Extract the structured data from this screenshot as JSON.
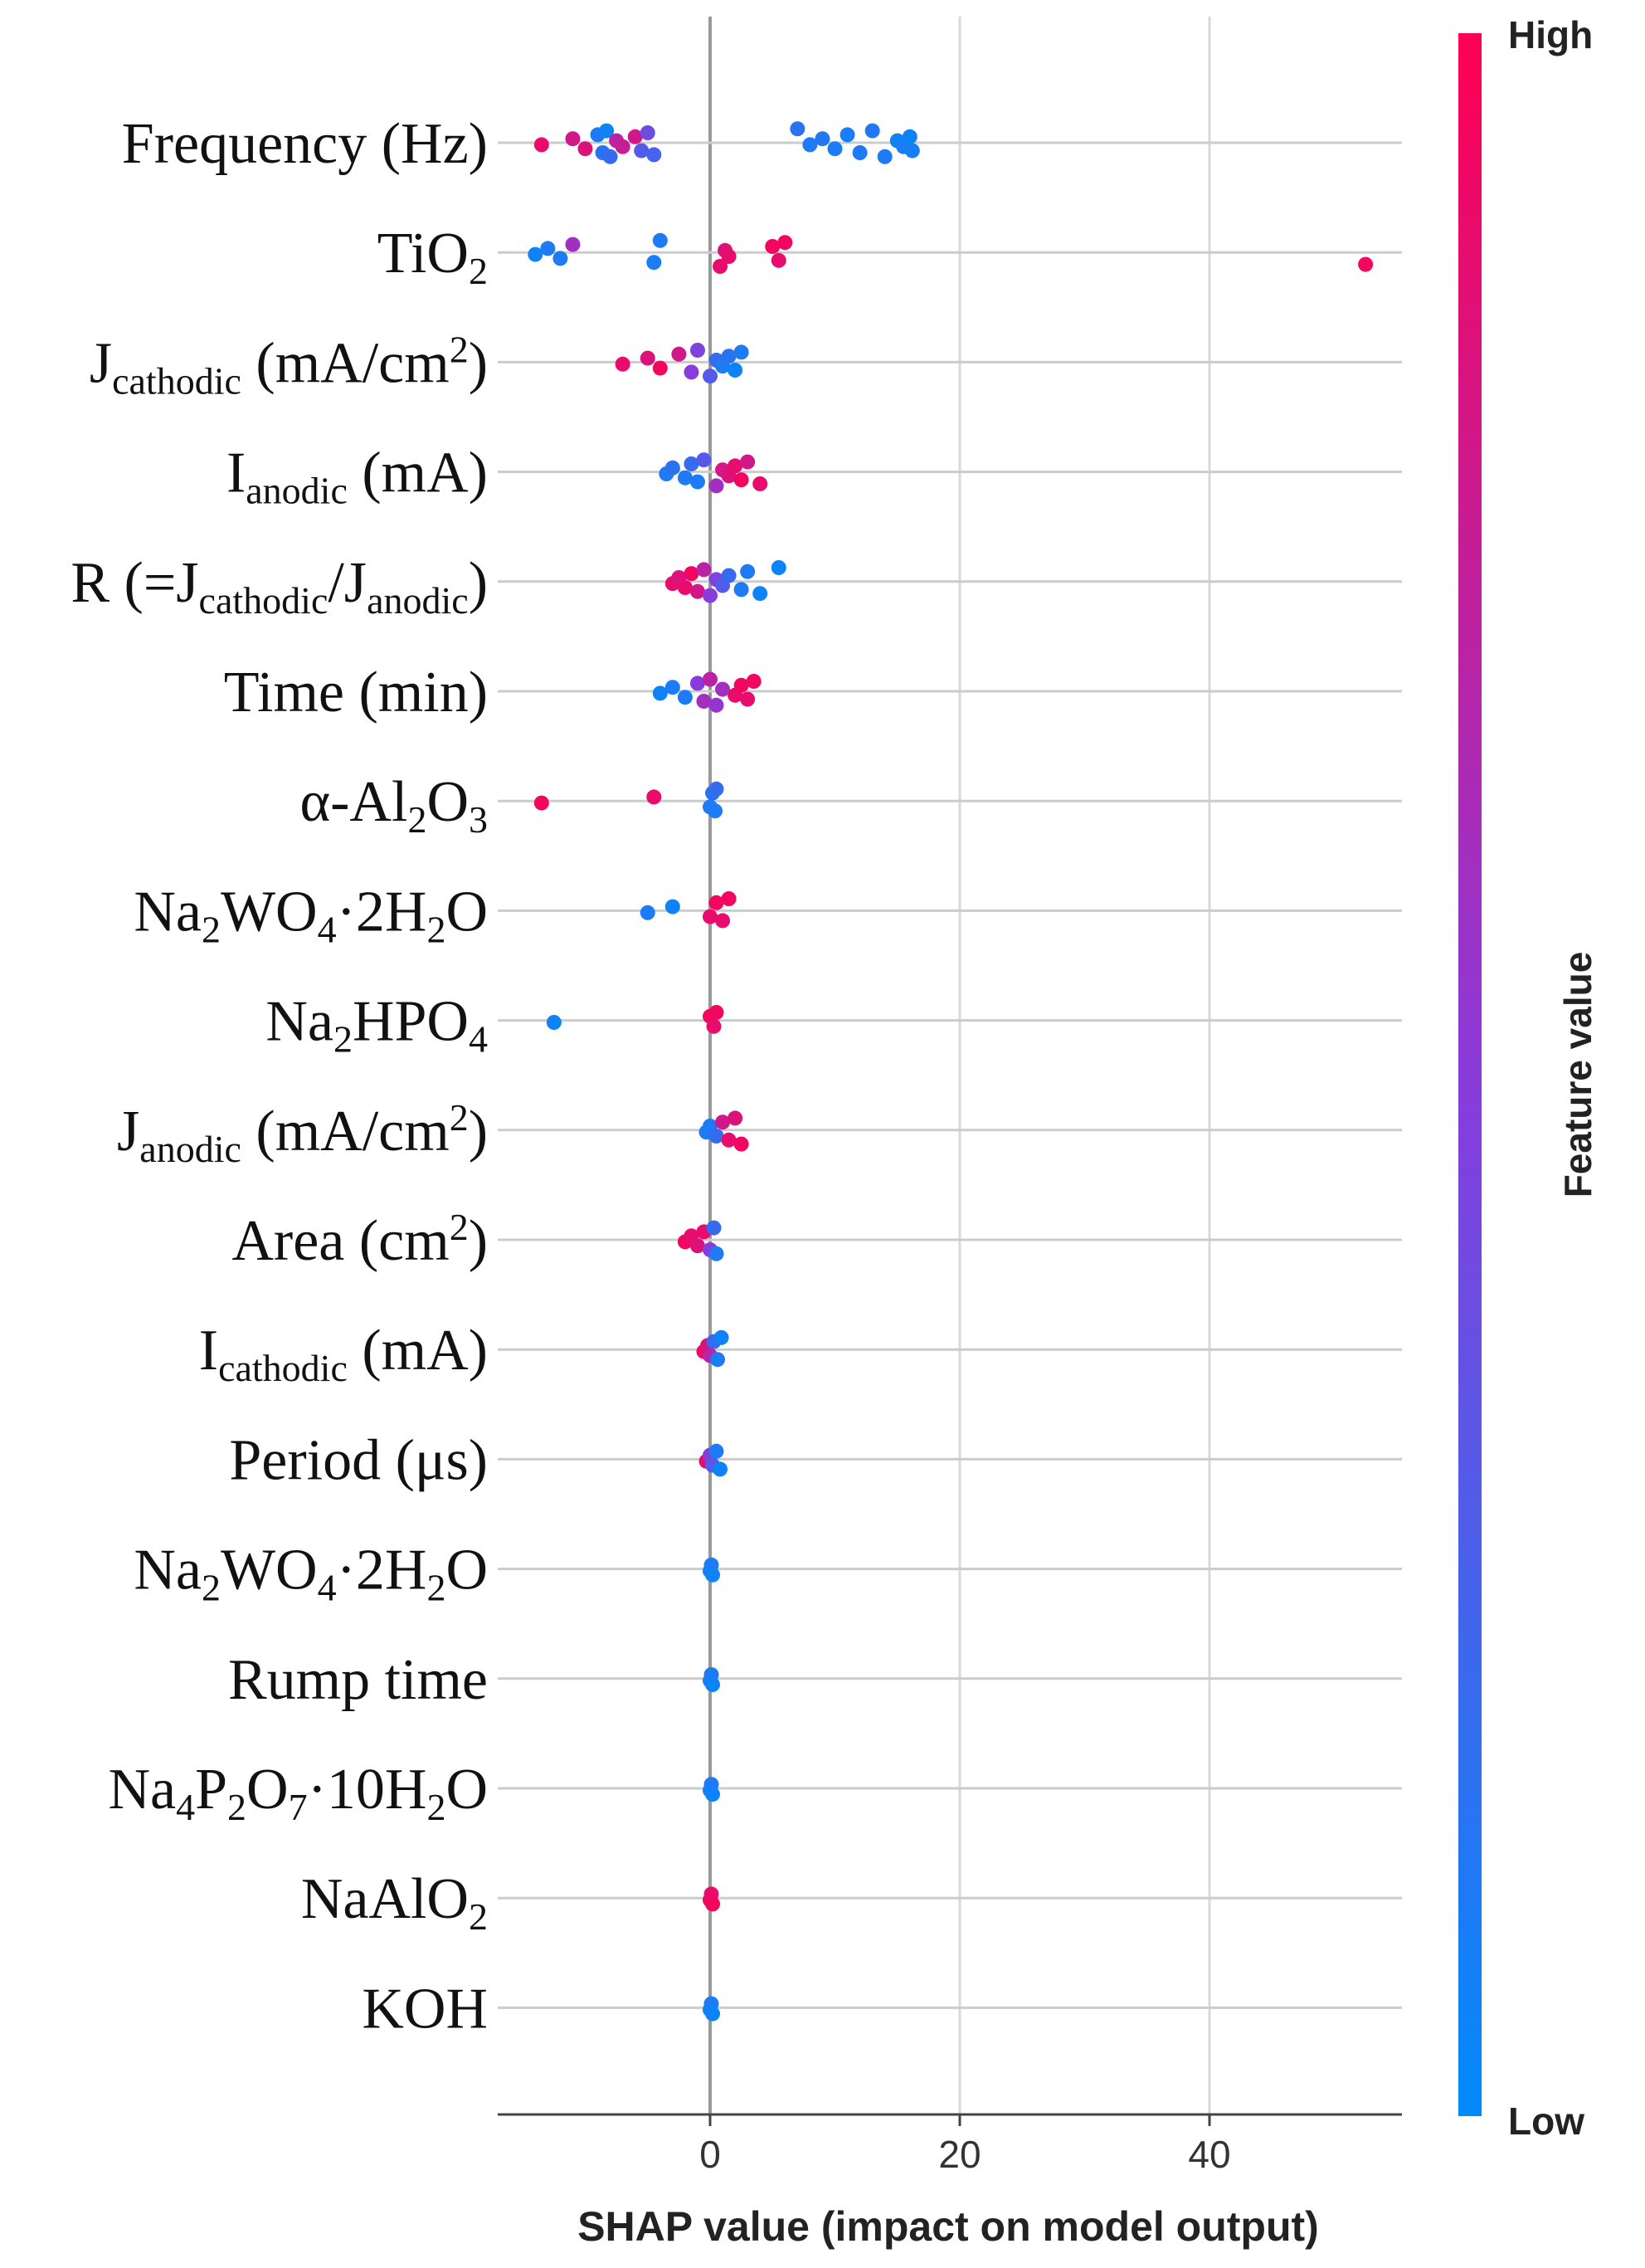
{
  "chart_data": {
    "type": "scatter",
    "subtype": "shap-beeswarm",
    "xlabel": "SHAP value (impact on model output)",
    "xlim": [
      -17,
      55
    ],
    "xticks": [
      0,
      20,
      40
    ],
    "colorbar": {
      "label": "Feature value",
      "high_label": "High",
      "low_label": "Low",
      "high_color": "#ff0052",
      "low_color": "#008bfb"
    },
    "features": [
      {
        "label": [
          [
            "Frequency (Hz)",
            ""
          ]
        ],
        "points": [
          [
            -13.5,
            0.9
          ],
          [
            -11,
            0.8
          ],
          [
            -10,
            0.85
          ],
          [
            -9,
            0.1
          ],
          [
            -8.6,
            0.15
          ],
          [
            -8.3,
            0.05
          ],
          [
            -8,
            0.2
          ],
          [
            -7.5,
            0.7
          ],
          [
            -7,
            0.75
          ],
          [
            -6,
            0.8
          ],
          [
            -5.5,
            0.3
          ],
          [
            -5,
            0.4
          ],
          [
            -4.5,
            0.25
          ],
          [
            7,
            0.15
          ],
          [
            8,
            0.1
          ],
          [
            9,
            0.12
          ],
          [
            10,
            0.1
          ],
          [
            11,
            0.08
          ],
          [
            12,
            0.1
          ],
          [
            13,
            0.12
          ],
          [
            14,
            0.1
          ],
          [
            15,
            0.05
          ],
          [
            15.5,
            0.1
          ],
          [
            16,
            0.05
          ],
          [
            16.2,
            0.08
          ]
        ]
      },
      {
        "label": [
          [
            "TiO",
            ""
          ],
          [
            "2",
            "sub"
          ]
        ],
        "points": [
          [
            -14,
            0.05
          ],
          [
            -13,
            0.1
          ],
          [
            -12,
            0.1
          ],
          [
            -11,
            0.6
          ],
          [
            -4.5,
            0.1
          ],
          [
            -4,
            0.1
          ],
          [
            0.8,
            0.9
          ],
          [
            1.2,
            0.85
          ],
          [
            1.5,
            0.9
          ],
          [
            5,
            0.95
          ],
          [
            5.5,
            0.9
          ],
          [
            6,
            0.95
          ],
          [
            52.5,
            0.95
          ]
        ]
      },
      {
        "label": [
          [
            "J",
            ""
          ],
          [
            "cathodic",
            "sub"
          ],
          [
            " (mA/cm",
            ""
          ],
          [
            "2",
            "sup"
          ],
          [
            ")",
            ""
          ]
        ],
        "points": [
          [
            -7,
            0.9
          ],
          [
            -5,
            0.85
          ],
          [
            -4,
            0.95
          ],
          [
            -2.5,
            0.8
          ],
          [
            -1.5,
            0.5
          ],
          [
            -1,
            0.45
          ],
          [
            0,
            0.3
          ],
          [
            0.5,
            0.2
          ],
          [
            1,
            0.1
          ],
          [
            1.5,
            0.15
          ],
          [
            2,
            0.05
          ],
          [
            2.5,
            0.1
          ]
        ]
      },
      {
        "label": [
          [
            "I",
            ""
          ],
          [
            "anodic",
            "sub"
          ],
          [
            " (mA)",
            ""
          ]
        ],
        "points": [
          [
            -3.5,
            0.1
          ],
          [
            -3,
            0.15
          ],
          [
            -2,
            0.1
          ],
          [
            -1.5,
            0.2
          ],
          [
            -1,
            0.1
          ],
          [
            -0.5,
            0.3
          ],
          [
            0.5,
            0.6
          ],
          [
            1,
            0.8
          ],
          [
            1.5,
            0.85
          ],
          [
            2,
            0.9
          ],
          [
            2.5,
            0.95
          ],
          [
            3,
            0.8
          ],
          [
            4,
            0.9
          ]
        ]
      },
      {
        "label": [
          [
            "R (=J",
            ""
          ],
          [
            "cathodic",
            "sub"
          ],
          [
            "/J",
            ""
          ],
          [
            "anodic",
            "sub"
          ],
          [
            ")",
            ""
          ]
        ],
        "points": [
          [
            -3,
            0.9
          ],
          [
            -2.5,
            0.85
          ],
          [
            -2,
            0.9
          ],
          [
            -1.5,
            0.95
          ],
          [
            -1,
            0.8
          ],
          [
            -0.5,
            0.7
          ],
          [
            0,
            0.5
          ],
          [
            0.5,
            0.45
          ],
          [
            1,
            0.3
          ],
          [
            1.5,
            0.2
          ],
          [
            2.5,
            0.1
          ],
          [
            3,
            0.1
          ],
          [
            4,
            0.05
          ],
          [
            5.5,
            0.05
          ]
        ]
      },
      {
        "label": [
          [
            "Time  (min)",
            ""
          ]
        ],
        "points": [
          [
            -4,
            0.05
          ],
          [
            -3,
            0.1
          ],
          [
            -2,
            0.1
          ],
          [
            -1,
            0.5
          ],
          [
            -0.5,
            0.6
          ],
          [
            0,
            0.7
          ],
          [
            0.5,
            0.55
          ],
          [
            1,
            0.6
          ],
          [
            2,
            0.9
          ],
          [
            2.5,
            0.95
          ],
          [
            3,
            0.9
          ],
          [
            3.5,
            0.95
          ]
        ]
      },
      {
        "label": [
          [
            "α-Al",
            ""
          ],
          [
            "2",
            "sub"
          ],
          [
            "O",
            ""
          ],
          [
            "3",
            "sub"
          ]
        ],
        "points": [
          [
            -13.5,
            0.95
          ],
          [
            -4.5,
            0.9
          ],
          [
            0,
            0.1
          ],
          [
            0.2,
            0.15
          ],
          [
            0.4,
            0.1
          ],
          [
            0.5,
            0.2
          ]
        ]
      },
      {
        "label": [
          [
            "Na",
            ""
          ],
          [
            "2",
            "sub"
          ],
          [
            "WO",
            ""
          ],
          [
            "4",
            "sub"
          ],
          [
            "·2H",
            ""
          ],
          [
            "2",
            "sub"
          ],
          [
            "O",
            ""
          ]
        ],
        "points": [
          [
            -5,
            0.1
          ],
          [
            -3,
            0.05
          ],
          [
            0,
            0.9
          ],
          [
            0.5,
            0.95
          ],
          [
            1,
            0.9
          ],
          [
            1.5,
            0.95
          ]
        ]
      },
      {
        "label": [
          [
            "Na",
            ""
          ],
          [
            "2",
            "sub"
          ],
          [
            "HPO",
            ""
          ],
          [
            "4",
            "sub"
          ]
        ],
        "points": [
          [
            -12.5,
            0.05
          ],
          [
            0,
            0.95
          ],
          [
            0.3,
            0.9
          ],
          [
            0.5,
            0.95
          ]
        ]
      },
      {
        "label": [
          [
            "J",
            ""
          ],
          [
            "anodic",
            "sub"
          ],
          [
            " (mA/cm",
            ""
          ],
          [
            "2",
            "sup"
          ],
          [
            ")",
            ""
          ]
        ],
        "points": [
          [
            -0.3,
            0.1
          ],
          [
            0,
            0.1
          ],
          [
            0.5,
            0.2
          ],
          [
            1,
            0.8
          ],
          [
            1.5,
            0.9
          ],
          [
            2,
            0.85
          ],
          [
            2.5,
            0.95
          ]
        ]
      },
      {
        "label": [
          [
            "Area (cm",
            ""
          ],
          [
            "2",
            "sup"
          ],
          [
            ")",
            ""
          ]
        ],
        "points": [
          [
            -2,
            0.95
          ],
          [
            -1.5,
            0.9
          ],
          [
            -1,
            0.85
          ],
          [
            -0.5,
            0.9
          ],
          [
            0,
            0.5
          ],
          [
            0.3,
            0.2
          ],
          [
            0.5,
            0.1
          ]
        ]
      },
      {
        "label": [
          [
            "I",
            ""
          ],
          [
            "cathodic",
            "sub"
          ],
          [
            " (mA)",
            ""
          ]
        ],
        "points": [
          [
            -0.5,
            0.9
          ],
          [
            -0.2,
            0.85
          ],
          [
            0,
            0.7
          ],
          [
            0.3,
            0.2
          ],
          [
            0.6,
            0.1
          ],
          [
            0.9,
            0.05
          ]
        ]
      },
      {
        "label": [
          [
            "Period (μs)",
            ""
          ]
        ],
        "points": [
          [
            -0.3,
            0.9
          ],
          [
            0,
            0.5
          ],
          [
            0.2,
            0.3
          ],
          [
            0.5,
            0.1
          ],
          [
            0.8,
            0.05
          ]
        ]
      },
      {
        "label": [
          [
            "Na",
            ""
          ],
          [
            "2",
            "sub"
          ],
          [
            "WO",
            ""
          ],
          [
            "4",
            "sub"
          ],
          [
            "·2H",
            ""
          ],
          [
            "2",
            "sub"
          ],
          [
            "O",
            ""
          ]
        ],
        "points": [
          [
            0,
            0.05
          ],
          [
            0.1,
            0.1
          ],
          [
            0.2,
            0.05
          ]
        ]
      },
      {
        "label": [
          [
            "Rump time",
            ""
          ]
        ],
        "points": [
          [
            0,
            0.05
          ],
          [
            0.1,
            0.1
          ],
          [
            0.2,
            0.05
          ]
        ]
      },
      {
        "label": [
          [
            "Na",
            ""
          ],
          [
            "4",
            "sub"
          ],
          [
            "P",
            ""
          ],
          [
            "2",
            "sub"
          ],
          [
            "O",
            ""
          ],
          [
            "7",
            "sub"
          ],
          [
            "·10H",
            ""
          ],
          [
            "2",
            "sub"
          ],
          [
            "O",
            ""
          ]
        ],
        "points": [
          [
            0,
            0.05
          ],
          [
            0.1,
            0.1
          ],
          [
            0.2,
            0.05
          ]
        ]
      },
      {
        "label": [
          [
            "NaAlO",
            ""
          ],
          [
            "2",
            "sub"
          ]
        ],
        "points": [
          [
            0,
            0.95
          ],
          [
            0.1,
            0.9
          ],
          [
            0.2,
            0.95
          ]
        ]
      },
      {
        "label": [
          [
            "KOH",
            ""
          ]
        ],
        "points": [
          [
            0,
            0.05
          ],
          [
            0.1,
            0.1
          ],
          [
            0.2,
            0.05
          ]
        ]
      }
    ]
  }
}
